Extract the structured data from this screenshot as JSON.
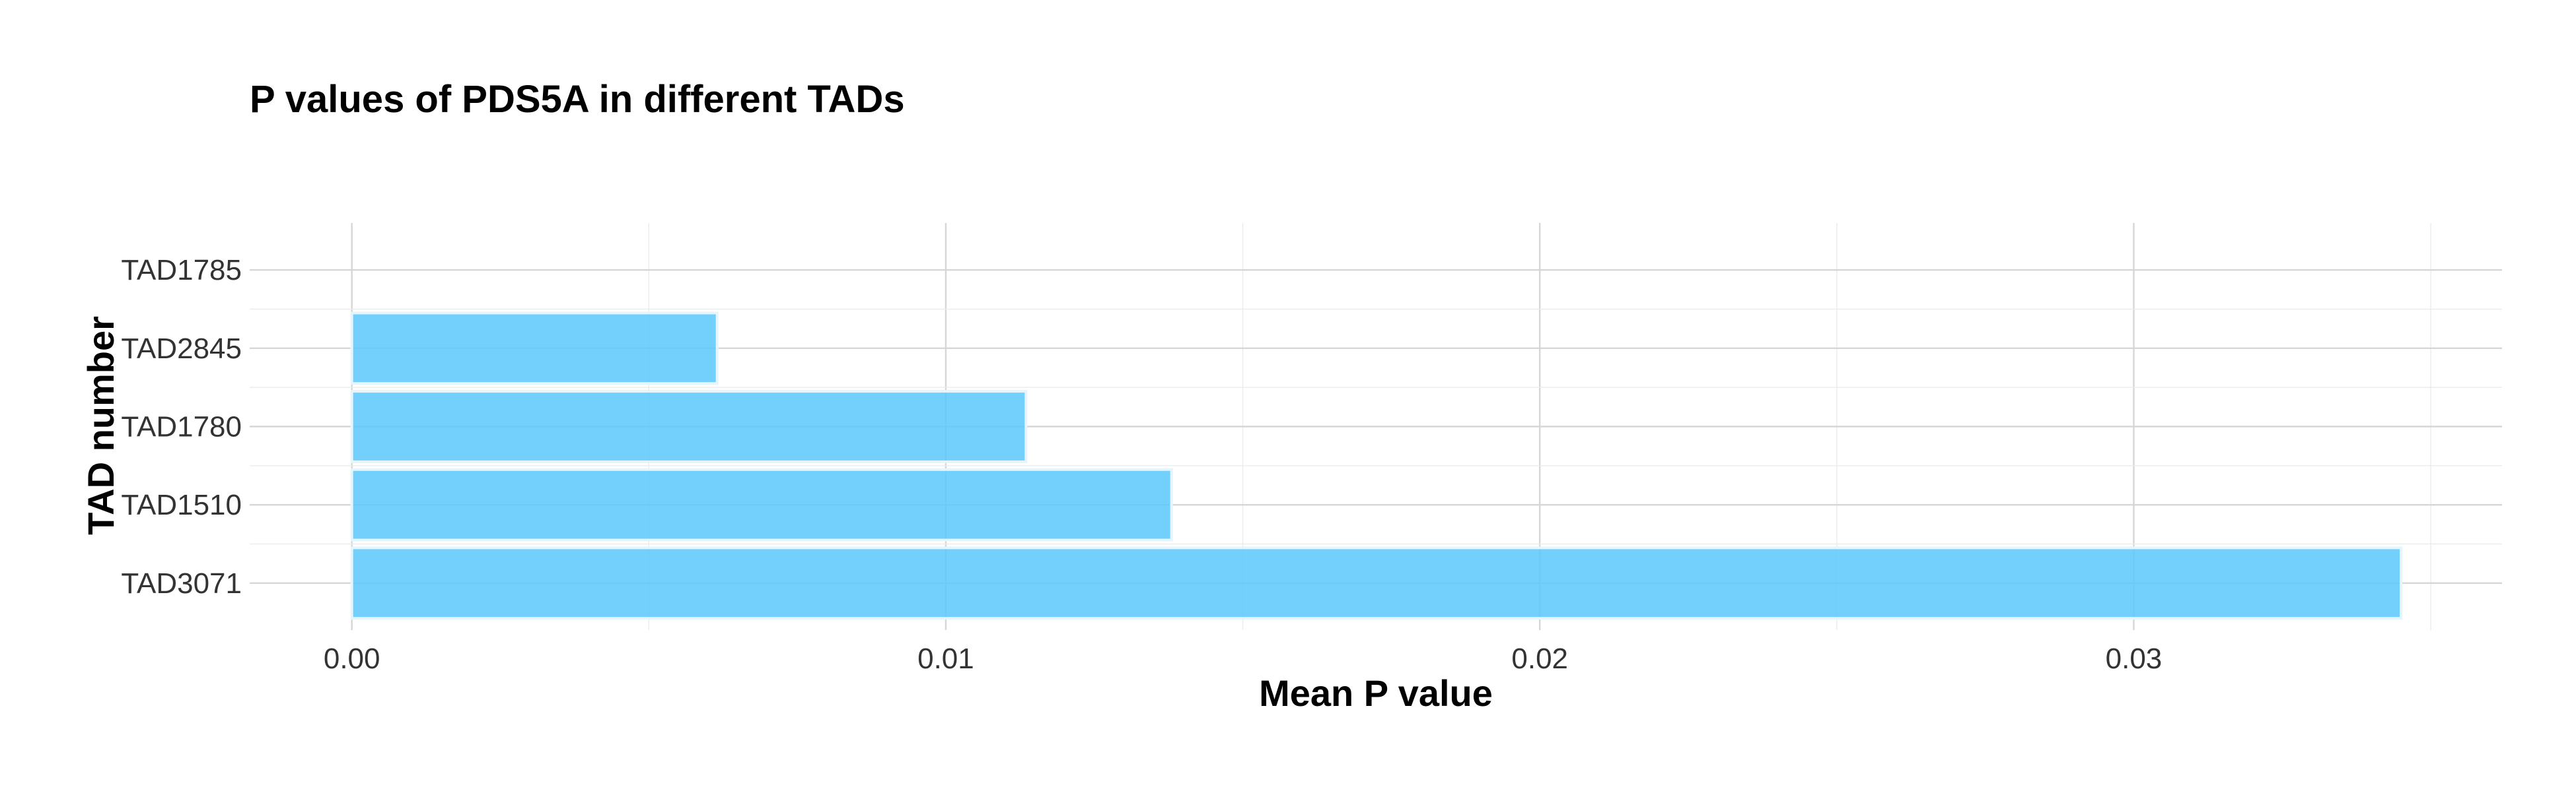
{
  "chart_data": {
    "type": "bar",
    "orientation": "horizontal",
    "title": "P values of PDS5A in different TADs",
    "xlabel": "Mean P value",
    "ylabel": "TAD number",
    "categories": [
      "TAD3071",
      "TAD1510",
      "TAD1780",
      "TAD2845",
      "TAD1785"
    ],
    "values": [
      0.0345,
      0.0138,
      0.01135,
      0.00615,
      0.0
    ],
    "x_ticks": [
      0,
      0.01,
      0.02,
      0.03
    ],
    "x_tick_labels": [
      "0.00",
      "0.01",
      "0.02",
      "0.03"
    ],
    "xlim": [
      -0.00172,
      0.0362
    ],
    "grid": true,
    "legend": "none",
    "bar_color": "#5bc8fc"
  }
}
